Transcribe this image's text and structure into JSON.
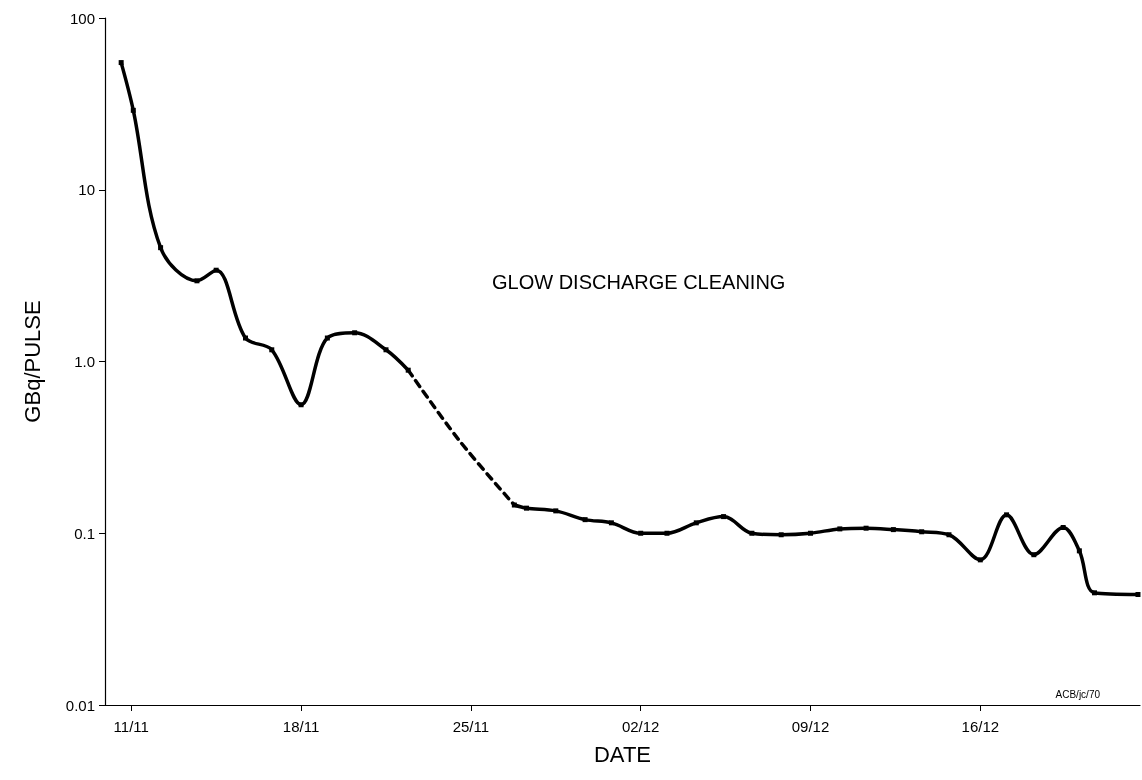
{
  "chart_data": {
    "type": "line",
    "xlabel": "DATE",
    "ylabel": "GBq/PULSE",
    "annotations": [
      "GLOW DISCHARGE CLEANING",
      "ACB/jc/70"
    ],
    "series": [
      {
        "color": "#000000",
        "line_style": "solid",
        "marker": "square",
        "x": [
          "--11-10T14:00",
          "--11-11T02:00",
          "--11-12T05:00",
          "--11-13T17:00",
          "--11-14T12:00",
          "--11-15T17:00",
          "--11-16T19:00",
          "--11-18",
          "--11-19T02:00",
          "--11-20T05:00",
          "--11-21T12:00",
          "--11-22T10:00"
        ],
        "values": [
          55,
          29,
          4.6,
          2.95,
          3.4,
          1.37,
          1.17,
          0.56,
          1.37,
          1.47,
          1.17,
          0.89
        ]
      },
      {
        "color": "#000000",
        "line_style": "dashed",
        "marker": "none",
        "x": [
          "--11-22T10:00",
          "--11-24T12:00",
          "--11-26T19:00"
        ],
        "values": [
          0.89,
          0.35,
          0.146
        ]
      },
      {
        "color": "#000000",
        "line_style": "solid",
        "marker": "square",
        "x": [
          "--11-26T19:00",
          "--11-27T07:00",
          "--11-28T12:00",
          "--11-29T17:00",
          "--11-30T19:00",
          "--12-02",
          "--12-03T02:00",
          "--12-04T07:00",
          "--12-05T10:00",
          "--12-06T14:00",
          "--12-07T19:00",
          "--12-09",
          "--12-10T05:00",
          "--12-11T07:00",
          "--12-12T10:00",
          "--12-13T14:00",
          "--12-14T17:00",
          "--12-16",
          "--12-17T02:00",
          "--12-18T05:00",
          "--12-19T10:00",
          "--12-20T02:00",
          "--12-20T17:00",
          "--12-22T12:00"
        ],
        "values": [
          0.146,
          0.14,
          0.135,
          0.12,
          0.115,
          0.1,
          0.1,
          0.115,
          0.125,
          0.1,
          0.098,
          0.1,
          0.106,
          0.107,
          0.105,
          0.102,
          0.098,
          0.07,
          0.128,
          0.075,
          0.108,
          0.079,
          0.045,
          0.044
        ]
      }
    ],
    "log": "y",
    "xlim": [
      "--11-09T22:00",
      "--12-22T14:00"
    ],
    "xticks": [
      {
        "value": "--11-11",
        "label": "11/11"
      },
      {
        "value": "--11-18",
        "label": "18/11"
      },
      {
        "value": "--11-25",
        "label": "25/11"
      },
      {
        "value": "--12-02",
        "label": "02/12"
      },
      {
        "value": "--12-09",
        "label": "09/12"
      },
      {
        "value": "--12-16",
        "label": "16/12"
      }
    ],
    "ylim": [
      0.01,
      100
    ],
    "yticks": [
      0.01,
      0.1,
      {
        "value": 1,
        "label": "1.0"
      },
      10,
      100
    ],
    "grid": false
  }
}
